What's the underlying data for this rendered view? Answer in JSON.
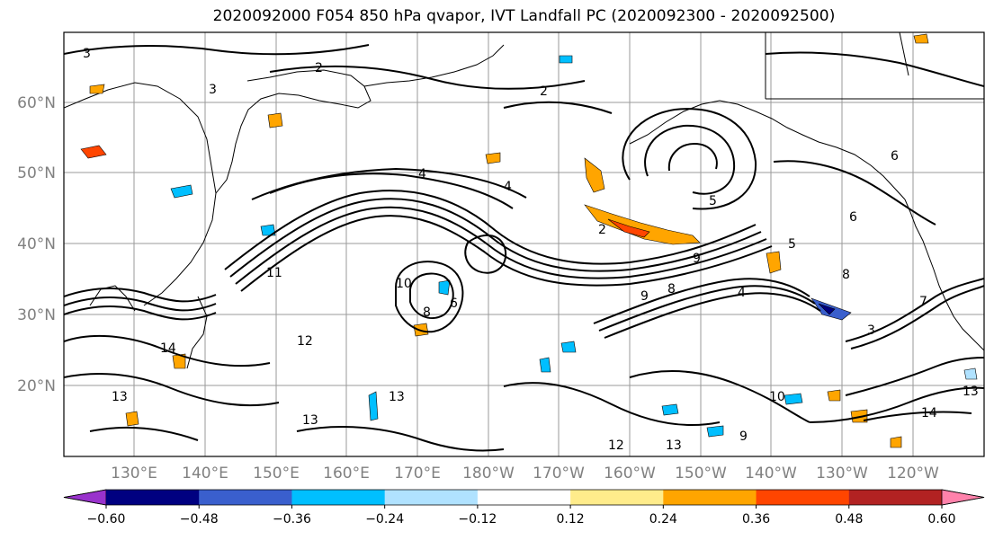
{
  "title": "2020092000 F054 850 hPa qvapor, IVT Landfall PC (2020092300 - 2020092500)",
  "lat_labels": [
    "60°N",
    "50°N",
    "40°N",
    "30°N",
    "20°N"
  ],
  "lon_labels": [
    "130°E",
    "140°E",
    "150°E",
    "160°E",
    "170°E",
    "180°W",
    "170°W",
    "160°W",
    "150°W",
    "140°W",
    "130°W",
    "120°W"
  ],
  "colorbar": {
    "colors": [
      "#9932cc",
      "#000080",
      "#3a5fcd",
      "#00bfff",
      "#b0e2ff",
      "#ffffff",
      "#ffec8b",
      "#ffa500",
      "#ff4500",
      "#b22222",
      "#ff82ab"
    ],
    "tick_labels": [
      "−0.60",
      "−0.48",
      "−0.36",
      "−0.24",
      "−0.12",
      "0.12",
      "0.24",
      "0.36",
      "0.48",
      "0.60"
    ]
  },
  "contour_labels": [
    "3",
    "2",
    "3",
    "4",
    "5",
    "6",
    "6",
    "7",
    "8",
    "9",
    "10",
    "11",
    "12",
    "13",
    "13",
    "13",
    "14",
    "8",
    "2",
    "5",
    "9",
    "10",
    "12",
    "13",
    "9",
    "8",
    "6",
    "4",
    "13",
    "14",
    "3",
    "4",
    "2"
  ]
}
